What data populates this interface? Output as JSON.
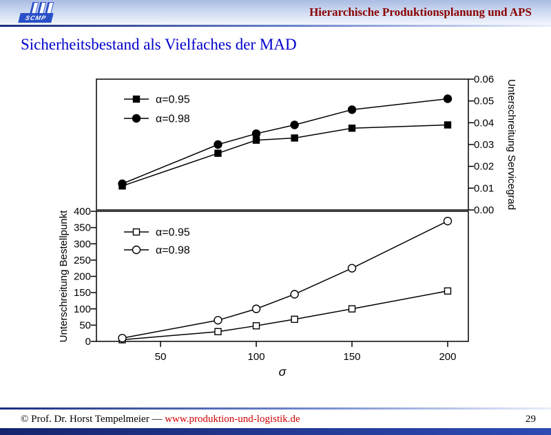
{
  "header": {
    "logo_text": "SCMP",
    "course_title": "Hierarchische Produktionsplanung und APS"
  },
  "slide": {
    "title": "Sicherheitsbestand als Vielfaches der MAD",
    "page_number": "29"
  },
  "footer": {
    "copyright": "© Prof. Dr. Horst Tempelmeier —",
    "url": "www.produktion-und-logistik.de"
  },
  "colors": {
    "header_text": "#8B0000",
    "slide_title": "#0000CD",
    "link": "#CC0000",
    "footer_bar": "#1B2F7E",
    "header_band_top": "#AABCE4",
    "header_band_bottom": "#F2F6FD",
    "logo_blue": "#2A50C8"
  },
  "chart_data": [
    {
      "type": "line",
      "x": [
        30,
        80,
        100,
        120,
        150,
        200
      ],
      "series": [
        {
          "name": "α=0.95",
          "marker": "filled-square",
          "values": [
            0.011,
            0.026,
            0.032,
            0.033,
            0.0375,
            0.039
          ]
        },
        {
          "name": "α=0.98",
          "marker": "filled-circle",
          "values": [
            0.012,
            0.03,
            0.035,
            0.039,
            0.046,
            0.051
          ]
        }
      ],
      "xlabel": "",
      "ylabel": "Unterschreitung Servicegrad",
      "ylabel_side": "right",
      "xlim": [
        16.5,
        210.8
      ],
      "ylim": [
        0,
        0.06
      ],
      "yticks": [
        0,
        0.01,
        0.02,
        0.03,
        0.04,
        0.05,
        0.06
      ],
      "ytick_labels": [
        "0.00",
        "0.01",
        "0.02",
        "0.03",
        "0.04",
        "0.05",
        "0.06"
      ],
      "grid": false,
      "legend_position": "top-left"
    },
    {
      "type": "line",
      "x": [
        30,
        80,
        100,
        120,
        150,
        200
      ],
      "series": [
        {
          "name": "α=0.95",
          "marker": "open-square",
          "values": [
            5,
            30,
            48,
            68,
            100,
            155
          ]
        },
        {
          "name": "α=0.98",
          "marker": "open-circle",
          "values": [
            10,
            65,
            100,
            145,
            225,
            370
          ]
        }
      ],
      "xlabel": "σ",
      "xticks": [
        50,
        100,
        150,
        200
      ],
      "ylabel": "Unterschreitung Bestellpunkt",
      "ylabel_side": "left",
      "xlim": [
        16.5,
        210.8
      ],
      "ylim": [
        0,
        400
      ],
      "yticks": [
        0,
        50,
        100,
        150,
        200,
        250,
        300,
        350,
        400
      ],
      "grid": false,
      "legend_position": "top-left"
    }
  ]
}
